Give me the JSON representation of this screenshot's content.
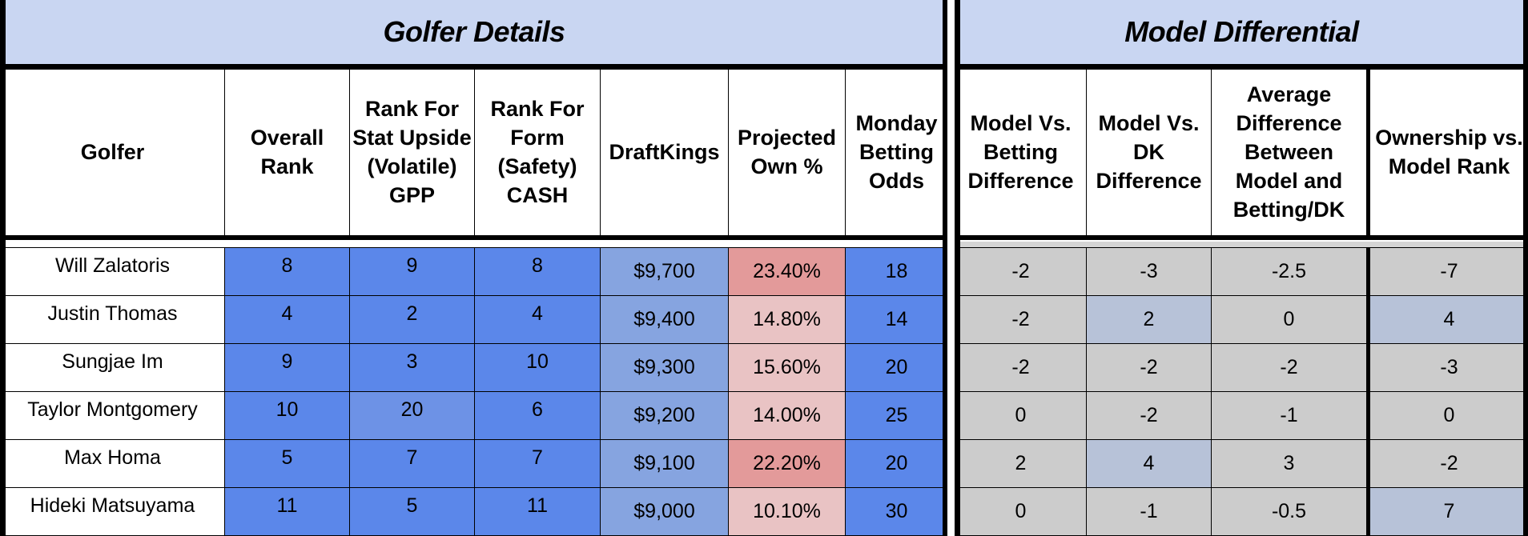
{
  "sections": {
    "golfer_details_title": "Golfer Details",
    "model_differential_title": "Model Differential"
  },
  "left_columns": [
    {
      "label": "Golfer"
    },
    {
      "label": "Overall Rank"
    },
    {
      "label": "Rank For Stat Upside (Volatile) GPP"
    },
    {
      "label": "Rank For Form (Safety) CASH"
    },
    {
      "label": "DraftKings"
    },
    {
      "label": "Projected Own %"
    },
    {
      "label": "Monday Betting Odds"
    }
  ],
  "right_columns": [
    {
      "label": "Model Vs. Betting Difference"
    },
    {
      "label": "Model Vs. DK Difference"
    },
    {
      "label": "Average Difference Between Model and Betting/DK"
    },
    {
      "label": "Ownership vs. Model Rank"
    }
  ],
  "rows": [
    {
      "golfer": "Will Zalatoris",
      "overall": "8",
      "gpp": "9",
      "cash": "8",
      "dk": "$9,700",
      "own": "23.40%",
      "odds": "18",
      "mvb": "-2",
      "mvdk": "-3",
      "avg": "-2.5",
      "ovm": "-7"
    },
    {
      "golfer": "Justin Thomas",
      "overall": "4",
      "gpp": "2",
      "cash": "4",
      "dk": "$9,400",
      "own": "14.80%",
      "odds": "14",
      "mvb": "-2",
      "mvdk": "2",
      "avg": "0",
      "ovm": "4"
    },
    {
      "golfer": "Sungjae Im",
      "overall": "9",
      "gpp": "3",
      "cash": "10",
      "dk": "$9,300",
      "own": "15.60%",
      "odds": "20",
      "mvb": "-2",
      "mvdk": "-2",
      "avg": "-2",
      "ovm": "-3"
    },
    {
      "golfer": "Taylor Montgomery",
      "overall": "10",
      "gpp": "20",
      "cash": "6",
      "dk": "$9,200",
      "own": "14.00%",
      "odds": "25",
      "mvb": "0",
      "mvdk": "-2",
      "avg": "-1",
      "ovm": "0"
    },
    {
      "golfer": "Max Homa",
      "overall": "5",
      "gpp": "7",
      "cash": "7",
      "dk": "$9,100",
      "own": "22.20%",
      "odds": "20",
      "mvb": "2",
      "mvdk": "4",
      "avg": "3",
      "ovm": "-2"
    },
    {
      "golfer": "Hideki Matsuyama",
      "overall": "11",
      "gpp": "5",
      "cash": "11",
      "dk": "$9,000",
      "own": "10.10%",
      "odds": "30",
      "mvb": "0",
      "mvdk": "-1",
      "avg": "-0.5",
      "ovm": "7"
    }
  ],
  "colors": {
    "banner": "#c9d6f2",
    "rank_blue": "#5b87ea",
    "rank_blue_light": "#6d92e6",
    "dk_blue": "#86a4e0",
    "own_red_strong": "#e39a9a",
    "own_red_light": "#e9c3c4",
    "grey": "#cccccc",
    "grey_blue": "#b7c2d8"
  }
}
